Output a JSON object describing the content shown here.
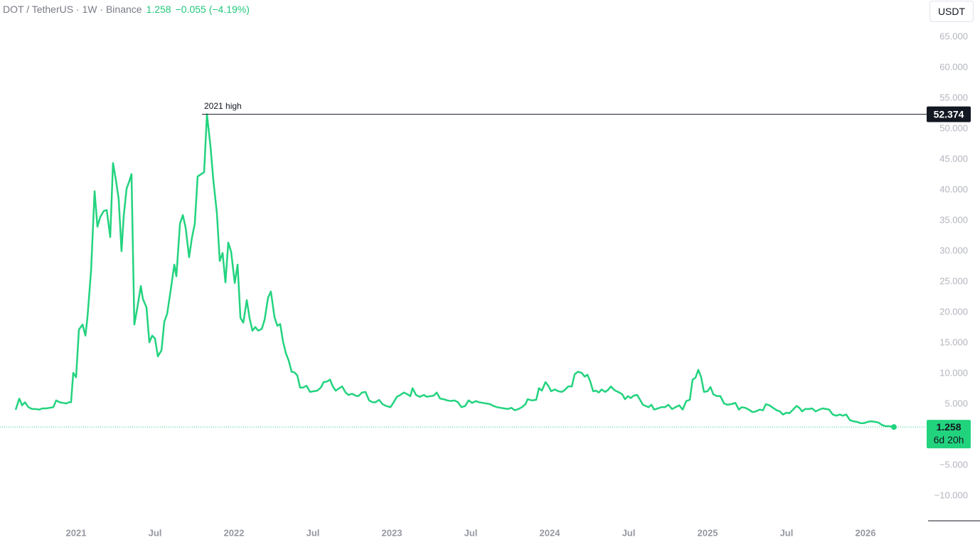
{
  "chart_data": {
    "type": "line",
    "symbol": "DOT / TetherUS · 1W · Binance",
    "last_price": 1.258,
    "change_label": "−0.055 (−4.19%)",
    "unit": "USDT",
    "countdown": "6d 20h",
    "annotation": {
      "text": "2021 high",
      "value": 52.374
    },
    "xlim": [
      2020.518,
      2026.374
    ],
    "ylim": [
      -14.07,
      71.05
    ],
    "xticks": [
      {
        "value": 2021,
        "label": "2021"
      },
      {
        "value": 2021.5,
        "label": "Jul"
      },
      {
        "value": 2022,
        "label": "2022"
      },
      {
        "value": 2022.5,
        "label": "Jul"
      },
      {
        "value": 2023,
        "label": "2023"
      },
      {
        "value": 2023.5,
        "label": "Jul"
      },
      {
        "value": 2024,
        "label": "2024"
      },
      {
        "value": 2024.5,
        "label": "Jul"
      },
      {
        "value": 2025,
        "label": "2025"
      },
      {
        "value": 2025.5,
        "label": "Jul"
      },
      {
        "value": 2026,
        "label": "2026"
      }
    ],
    "yticks": [
      {
        "value": 65,
        "label": "65.000"
      },
      {
        "value": 60,
        "label": "60.000"
      },
      {
        "value": 55,
        "label": "55.000"
      },
      {
        "value": 50,
        "label": "50.000"
      },
      {
        "value": 45,
        "label": "45.000"
      },
      {
        "value": 40,
        "label": "40.000"
      },
      {
        "value": 35,
        "label": "35.000"
      },
      {
        "value": 30,
        "label": "30.000"
      },
      {
        "value": 25,
        "label": "25.000"
      },
      {
        "value": 20,
        "label": "20.000"
      },
      {
        "value": 15,
        "label": "15.000"
      },
      {
        "value": 10,
        "label": "10.000"
      },
      {
        "value": 5,
        "label": "5.000"
      },
      {
        "value": -5,
        "label": "−5.000"
      },
      {
        "value": -10,
        "label": "−10.000"
      }
    ],
    "x": [
      2020.617,
      2020.64,
      2020.658,
      2020.676,
      2020.698,
      2020.721,
      2020.743,
      2020.766,
      2020.788,
      2020.811,
      2020.833,
      2020.856,
      2020.874,
      2020.896,
      2020.919,
      2020.937,
      2020.955,
      2020.968,
      2020.982,
      2021.0,
      2021.018,
      2021.041,
      2021.059,
      2021.072,
      2021.095,
      2021.117,
      2021.135,
      2021.153,
      2021.176,
      2021.194,
      2021.216,
      2021.234,
      2021.252,
      2021.27,
      2021.288,
      2021.302,
      2021.32,
      2021.338,
      2021.351,
      2021.369,
      2021.387,
      2021.41,
      2021.423,
      2021.446,
      2021.464,
      2021.482,
      2021.5,
      2021.518,
      2021.541,
      2021.559,
      2021.577,
      2021.599,
      2021.622,
      2021.635,
      2021.658,
      2021.676,
      2021.694,
      2021.716,
      2021.734,
      2021.752,
      2021.77,
      2021.793,
      2021.811,
      2021.829,
      2021.851,
      2021.869,
      2021.892,
      2021.91,
      2021.928,
      2021.946,
      2021.964,
      2021.982,
      2022.005,
      2022.023,
      2022.041,
      2022.059,
      2022.081,
      2022.099,
      2022.117,
      2022.135,
      2022.153,
      2022.176,
      2022.194,
      2022.216,
      2022.234,
      2022.257,
      2022.275,
      2022.293,
      2022.311,
      2022.329,
      2022.347,
      2022.365,
      2022.383,
      2022.401,
      2022.419,
      2022.437,
      2022.459,
      2022.482,
      2022.505,
      2022.527,
      2022.55,
      2022.568,
      2022.59,
      2022.608,
      2022.626,
      2022.644,
      2022.667,
      2022.685,
      2022.707,
      2022.725,
      2022.748,
      2022.77,
      2022.788,
      2022.811,
      2022.833,
      2022.856,
      2022.878,
      2022.896,
      2022.919,
      2022.941,
      2022.964,
      2022.991,
      2023.009,
      2023.032,
      2023.054,
      2023.077,
      2023.099,
      2023.117,
      2023.131,
      2023.153,
      2023.176,
      2023.203,
      2023.221,
      2023.243,
      2023.266,
      2023.284,
      2023.306,
      2023.329,
      2023.351,
      2023.374,
      2023.396,
      2023.419,
      2023.441,
      2023.464,
      2023.486,
      2023.509,
      2023.532,
      2023.554,
      2023.577,
      2023.599,
      2023.622,
      2023.644,
      2023.667,
      2023.689,
      2023.712,
      2023.734,
      2023.757,
      2023.779,
      2023.802,
      2023.824,
      2023.847,
      2023.86,
      2023.887,
      2023.914,
      2023.932,
      2023.95,
      2023.973,
      2023.991,
      2024.009,
      2024.032,
      2024.054,
      2024.077,
      2024.095,
      2024.117,
      2024.14,
      2024.158,
      2024.18,
      2024.203,
      2024.221,
      2024.239,
      2024.257,
      2024.275,
      2024.293,
      2024.311,
      2024.329,
      2024.351,
      2024.369,
      2024.387,
      2024.405,
      2024.423,
      2024.441,
      2024.459,
      2024.477,
      2024.495,
      2024.514,
      2024.532,
      2024.554,
      2024.572,
      2024.59,
      2024.608,
      2024.626,
      2024.644,
      2024.662,
      2024.685,
      2024.707,
      2024.73,
      2024.752,
      2024.775,
      2024.797,
      2024.82,
      2024.842,
      2024.865,
      2024.887,
      2024.905,
      2024.923,
      2024.941,
      2024.959,
      2024.977,
      2025.0,
      2025.018,
      2025.036,
      2025.059,
      2025.081,
      2025.104,
      2025.126,
      2025.149,
      2025.176,
      2025.198,
      2025.216,
      2025.239,
      2025.261,
      2025.284,
      2025.306,
      2025.329,
      2025.351,
      2025.369,
      2025.392,
      2025.414,
      2025.437,
      2025.459,
      2025.477,
      2025.5,
      2025.518,
      2025.541,
      2025.563,
      2025.581,
      2025.599,
      2025.617,
      2025.64,
      2025.662,
      2025.685,
      2025.707,
      2025.73,
      2025.752,
      2025.77,
      2025.793,
      2025.815,
      2025.838,
      2025.856,
      2025.878,
      2025.901,
      2025.923,
      2025.946,
      2025.968,
      2025.991,
      2026.014,
      2026.036,
      2026.059,
      2026.081,
      2026.104,
      2026.126,
      2026.149,
      2026.18
    ],
    "series": [
      {
        "name": "DOT / TetherUS",
        "color": "#22d37e",
        "values": [
          4.07,
          5.9,
          4.8,
          5.3,
          4.5,
          4.2,
          4.2,
          4.1,
          4.3,
          4.3,
          4.4,
          4.5,
          5.6,
          5.3,
          5.2,
          5.1,
          5.3,
          5.3,
          10.1,
          9.4,
          17.2,
          18.0,
          16.2,
          19.2,
          26.9,
          39.8,
          34.0,
          35.6,
          36.6,
          36.7,
          32.3,
          44.4,
          41.7,
          38.5,
          30.0,
          35.8,
          40.2,
          41.5,
          42.6,
          18.0,
          20.6,
          24.3,
          22.2,
          20.8,
          15.1,
          16.2,
          15.7,
          12.8,
          13.8,
          18.5,
          19.8,
          23.6,
          27.8,
          25.9,
          34.5,
          35.9,
          33.8,
          29.0,
          32.2,
          34.5,
          42.2,
          42.6,
          42.9,
          52.374,
          47.2,
          41.7,
          36.2,
          28.4,
          29.7,
          24.9,
          31.4,
          29.9,
          24.8,
          27.8,
          19.1,
          18.3,
          22.0,
          19.0,
          17.0,
          17.6,
          17.0,
          17.3,
          18.8,
          22.4,
          23.4,
          19.2,
          17.8,
          18.1,
          15.2,
          13.3,
          12.1,
          10.3,
          10.2,
          9.7,
          7.7,
          7.7,
          8.0,
          7.0,
          7.1,
          7.2,
          7.7,
          8.6,
          8.7,
          9.0,
          7.9,
          7.2,
          7.6,
          7.9,
          6.9,
          6.5,
          6.7,
          6.4,
          6.3,
          6.9,
          7.0,
          5.6,
          5.3,
          5.3,
          5.7,
          5.0,
          4.7,
          4.5,
          5.2,
          6.2,
          6.5,
          6.9,
          6.6,
          6.3,
          7.6,
          6.5,
          6.2,
          6.5,
          6.2,
          6.3,
          6.4,
          6.9,
          5.9,
          5.8,
          5.6,
          5.5,
          5.6,
          5.3,
          4.5,
          4.7,
          5.6,
          5.2,
          5.5,
          5.3,
          5.2,
          5.1,
          5.0,
          4.7,
          4.5,
          4.4,
          4.3,
          4.2,
          4.4,
          4.0,
          4.2,
          4.5,
          5.0,
          5.8,
          5.6,
          5.7,
          7.6,
          7.2,
          8.6,
          8.0,
          7.1,
          7.4,
          7.1,
          7.0,
          7.3,
          7.9,
          7.9,
          9.9,
          10.3,
          10.1,
          9.5,
          9.8,
          8.7,
          7.1,
          7.2,
          6.9,
          7.4,
          7.0,
          7.3,
          7.9,
          7.4,
          7.1,
          6.9,
          6.6,
          5.8,
          6.3,
          6.0,
          6.4,
          6.5,
          5.7,
          4.9,
          4.7,
          4.5,
          4.9,
          4.1,
          4.3,
          4.5,
          4.5,
          4.9,
          4.2,
          4.5,
          4.8,
          4.1,
          5.5,
          5.7,
          9.0,
          9.3,
          10.6,
          9.4,
          7.0,
          7.1,
          7.8,
          6.6,
          6.3,
          6.3,
          5.1,
          4.9,
          5.0,
          5.2,
          4.1,
          4.5,
          4.4,
          4.1,
          3.7,
          3.8,
          4.1,
          4.0,
          5.0,
          4.8,
          4.4,
          4.0,
          3.8,
          3.3,
          3.6,
          3.5,
          4.1,
          4.7,
          4.4,
          3.8,
          4.2,
          4.2,
          4.3,
          3.8,
          4.1,
          4.3,
          4.2,
          4.1,
          3.3,
          3.1,
          3.3,
          3.1,
          3.3,
          2.4,
          2.2,
          2.1,
          1.9,
          1.9,
          2.1,
          2.2,
          2.1,
          2.0,
          1.6,
          1.4,
          1.4,
          1.258
        ]
      }
    ]
  }
}
